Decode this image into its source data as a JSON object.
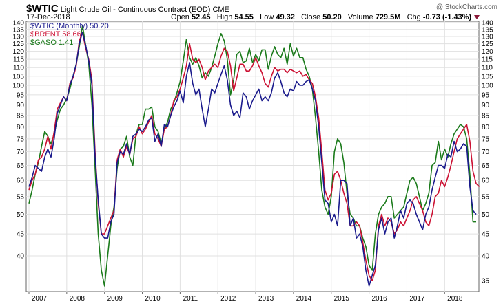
{
  "header": {
    "symbol": "$WTIC",
    "description": "Light Crude Oil - Continuous Contract (EOD)",
    "exchange": "CME",
    "date": "17-Dec-2018",
    "watermark": "@ StockCharts.com",
    "quotes": [
      {
        "label": "Open",
        "value": "52.45"
      },
      {
        "label": "High",
        "value": "54.55"
      },
      {
        "label": "Low",
        "value": "49.32"
      },
      {
        "label": "Close",
        "value": "50.20"
      },
      {
        "label": "Volume",
        "value": "729.5M"
      },
      {
        "label": "Chg",
        "value": "-0.73 (-1.43%)"
      }
    ]
  },
  "legend": [
    {
      "label": "$WTIC (Monthly) 50.20",
      "color": "#1a1a8c"
    },
    {
      "label": "$BRENT 58.66",
      "color": "#cc1133"
    },
    {
      "label": "$GASO 1.41",
      "color": "#1a7a1a"
    }
  ],
  "chart_data": {
    "type": "line",
    "scale": "log",
    "ylim": [
      33,
      141
    ],
    "left_ticks": [
      40,
      45,
      50,
      55,
      60,
      65,
      70,
      75,
      80,
      85,
      90,
      95,
      100,
      105,
      110,
      115,
      120,
      125,
      130,
      135,
      140
    ],
    "right_ticks": [
      35,
      40,
      45,
      50,
      55,
      60,
      65,
      70,
      75,
      80,
      85,
      90,
      95,
      100,
      105,
      110,
      115,
      120,
      125,
      130,
      135,
      140
    ],
    "x_labels": [
      "2007",
      "2008",
      "2009",
      "2010",
      "2011",
      "2012",
      "2013",
      "2014",
      "2015",
      "2016",
      "2017",
      "2018"
    ],
    "x_label_index": [
      0,
      12,
      24,
      36,
      48,
      60,
      72,
      84,
      96,
      108,
      120,
      132
    ],
    "grid": true,
    "series": [
      {
        "name": "$WTIC",
        "color": "#1a1a8c",
        "values": [
          58,
          61,
          65,
          64,
          63,
          68,
          71,
          68,
          75,
          86,
          90,
          94,
          92,
          100,
          105,
          112,
          125,
          133,
          124,
          114,
          100,
          68,
          54,
          45,
          44,
          44,
          48,
          50,
          66,
          70,
          69,
          73,
          69,
          76,
          77,
          79,
          78,
          80,
          83,
          84,
          74,
          77,
          72,
          81,
          80,
          85,
          89,
          92,
          97,
          91,
          105,
          113,
          101,
          95,
          98,
          88,
          80,
          88,
          98,
          96,
          101,
          106,
          111,
          103,
          90,
          85,
          87,
          84,
          96,
          94,
          88,
          92,
          95,
          98,
          92,
          94,
          92,
          96,
          104,
          107,
          102,
          96,
          94,
          98,
          97,
          102,
          100,
          100,
          102,
          103,
          98,
          92,
          80,
          66,
          54,
          53,
          48,
          50,
          47,
          60,
          60,
          59,
          47,
          49,
          44,
          45,
          42,
          37,
          34,
          36,
          38,
          46,
          49,
          45,
          48,
          49,
          44,
          47,
          51,
          49,
          53,
          54,
          53,
          50,
          48,
          46,
          50,
          52,
          57,
          61,
          65,
          65,
          64,
          69,
          68,
          74,
          70,
          71,
          73,
          72,
          58,
          51,
          50
        ],
        "last_label": "50.20"
      },
      {
        "name": "$BRENT",
        "color": "#cc1133",
        "values": [
          57,
          60,
          62,
          67,
          68,
          71,
          76,
          71,
          78,
          88,
          91,
          94,
          92,
          101,
          104,
          111,
          127,
          133,
          122,
          115,
          103,
          70,
          53,
          45,
          45,
          47,
          49,
          51,
          67,
          71,
          68,
          72,
          69,
          75,
          76,
          80,
          77,
          79,
          82,
          85,
          77,
          75,
          72,
          79,
          80,
          85,
          92,
          94,
          98,
          104,
          111,
          125,
          115,
          113,
          115,
          110,
          103,
          108,
          110,
          112,
          110,
          117,
          122,
          120,
          111,
          97,
          104,
          112,
          112,
          108,
          108,
          111,
          116,
          111,
          107,
          101,
          99,
          105,
          110,
          108,
          109,
          109,
          107,
          109,
          108,
          107,
          108,
          105,
          106,
          103,
          101,
          94,
          84,
          70,
          57,
          54,
          56,
          62,
          63,
          60,
          56,
          53,
          47,
          47,
          48,
          47,
          43,
          39,
          36,
          35,
          37,
          47,
          50,
          47,
          49,
          48,
          45,
          46,
          48,
          47,
          49,
          51,
          54,
          55,
          53,
          51,
          48,
          47,
          50,
          55,
          56,
          60,
          58,
          61,
          65,
          70,
          75,
          77,
          79,
          81,
          74,
          63,
          59,
          58
        ],
        "last_label": "58.66"
      },
      {
        "name": "$GASO",
        "color": "#1a7a1a",
        "values": [
          53,
          57,
          62,
          66,
          72,
          78,
          76,
          73,
          77,
          83,
          88,
          90,
          93,
          98,
          105,
          112,
          123,
          138,
          124,
          112,
          90,
          64,
          45,
          37,
          34,
          40,
          47,
          52,
          64,
          71,
          72,
          76,
          68,
          65,
          77,
          81,
          81,
          88,
          88,
          89,
          80,
          78,
          73,
          79,
          82,
          88,
          91,
          96,
          102,
          114,
          128,
          116,
          112,
          116,
          111,
          104,
          107,
          105,
          110,
          117,
          125,
          132,
          127,
          115,
          95,
          103,
          118,
          120,
          113,
          114,
          122,
          113,
          118,
          114,
          121,
          121,
          109,
          117,
          123,
          118,
          116,
          122,
          112,
          125,
          117,
          122,
          116,
          116,
          109,
          105,
          98,
          84,
          70,
          57,
          52,
          50,
          55,
          70,
          75,
          73,
          66,
          56,
          50,
          49,
          47,
          47,
          44,
          42,
          38,
          37,
          45,
          50,
          52,
          53,
          55,
          55,
          49,
          50,
          51,
          52,
          56,
          60,
          61,
          59,
          55,
          51,
          53,
          56,
          65,
          66,
          74,
          67,
          71,
          68,
          73,
          77,
          79,
          81,
          80,
          75,
          62,
          48,
          48
        ],
        "last_label": "1.41"
      }
    ]
  }
}
